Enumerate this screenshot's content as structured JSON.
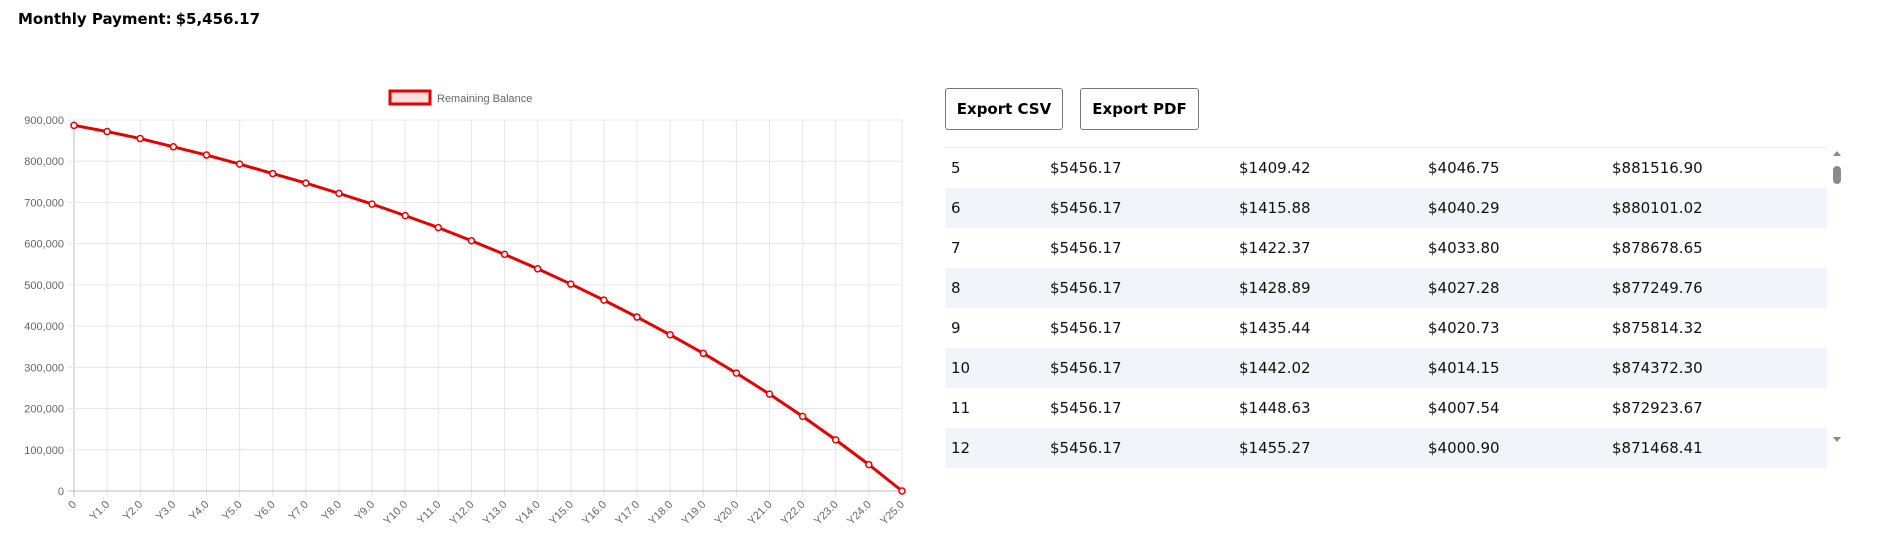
{
  "header": {
    "label": "Monthly Payment:",
    "value": "$5,456.17"
  },
  "buttons": {
    "export_csv": "Export CSV",
    "export_pdf": "Export PDF"
  },
  "table": {
    "rows": [
      [
        "5",
        "$5456.17",
        "$1409.42",
        "$4046.75",
        "$881516.90"
      ],
      [
        "6",
        "$5456.17",
        "$1415.88",
        "$4040.29",
        "$880101.02"
      ],
      [
        "7",
        "$5456.17",
        "$1422.37",
        "$4033.80",
        "$878678.65"
      ],
      [
        "8",
        "$5456.17",
        "$1428.89",
        "$4027.28",
        "$877249.76"
      ],
      [
        "9",
        "$5456.17",
        "$1435.44",
        "$4020.73",
        "$875814.32"
      ],
      [
        "10",
        "$5456.17",
        "$1442.02",
        "$4014.15",
        "$874372.30"
      ],
      [
        "11",
        "$5456.17",
        "$1448.63",
        "$4007.54",
        "$872923.67"
      ],
      [
        "12",
        "$5456.17",
        "$1455.27",
        "$4000.90",
        "$871468.41"
      ]
    ]
  },
  "chart_data": {
    "type": "line",
    "series": [
      {
        "name": "Remaining Balance",
        "color": "#e00000",
        "values": [
          887000,
          872000,
          855000,
          835000,
          815000,
          793000,
          770000,
          747000,
          722000,
          696000,
          668000,
          639000,
          607000,
          574000,
          539000,
          502000,
          463000,
          422000,
          379000,
          334000,
          286000,
          235000,
          181000,
          124000,
          64000,
          0
        ]
      }
    ],
    "categories": [
      "0",
      "Y1.0",
      "Y2.0",
      "Y3.0",
      "Y4.0",
      "Y5.0",
      "Y6.0",
      "Y7.0",
      "Y8.0",
      "Y9.0",
      "Y10.0",
      "Y11.0",
      "Y12.0",
      "Y13.0",
      "Y14.0",
      "Y15.0",
      "Y16.0",
      "Y17.0",
      "Y18.0",
      "Y19.0",
      "Y20.0",
      "Y21.0",
      "Y22.0",
      "Y23.0",
      "Y24.0",
      "Y25.0"
    ],
    "y_ticks": [
      "0",
      "100,000",
      "200,000",
      "300,000",
      "400,000",
      "500,000",
      "600,000",
      "700,000",
      "800,000",
      "900,000"
    ],
    "ylim": [
      0,
      900000
    ],
    "grid": true,
    "legend_position": "top"
  }
}
